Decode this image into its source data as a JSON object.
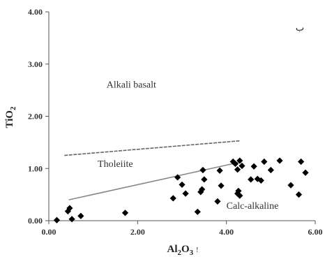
{
  "chart_data": {
    "type": "scatter",
    "title": "",
    "xlabel_main": "Al",
    "xlabel_sub1": "2",
    "xlabel_mid": "O",
    "xlabel_sub2": "3",
    "xlabel_suffix": "!",
    "ylabel_main": "TiO",
    "ylabel_sub": "2",
    "xlim": [
      0,
      6
    ],
    "ylim": [
      0,
      4
    ],
    "x_ticks": [
      0,
      2,
      4,
      6
    ],
    "x_tick_labels": [
      "0.00",
      "2.00",
      "4.00",
      "6.00"
    ],
    "y_ticks": [
      0,
      1,
      2,
      3,
      4
    ],
    "y_tick_labels": [
      "0.00",
      "1.00",
      "2.00",
      "3.00",
      "4.00"
    ],
    "grid": false,
    "corner_mark": "ب",
    "field_labels": [
      {
        "text": "Alkali basalt",
        "x": 1.3,
        "y": 2.55
      },
      {
        "text": "Tholeiite",
        "x": 1.1,
        "y": 1.03
      },
      {
        "text": "Calc-alkaline",
        "x": 4.0,
        "y": 0.23
      }
    ],
    "boundaries": [
      {
        "name": "upper",
        "style": "dashed",
        "x": [
          0.35,
          4.3
        ],
        "y": [
          1.25,
          1.53
        ]
      },
      {
        "name": "lower",
        "style": "solid",
        "x": [
          0.45,
          4.3
        ],
        "y": [
          0.4,
          1.12
        ]
      }
    ],
    "points": [
      {
        "x": 0.18,
        "y": 0.01
      },
      {
        "x": 0.43,
        "y": 0.18
      },
      {
        "x": 0.47,
        "y": 0.24
      },
      {
        "x": 0.52,
        "y": 0.03
      },
      {
        "x": 0.72,
        "y": 0.09
      },
      {
        "x": 1.72,
        "y": 0.15
      },
      {
        "x": 2.8,
        "y": 0.43
      },
      {
        "x": 2.9,
        "y": 0.83
      },
      {
        "x": 3.0,
        "y": 0.69
      },
      {
        "x": 3.08,
        "y": 0.52
      },
      {
        "x": 3.35,
        "y": 0.17
      },
      {
        "x": 3.42,
        "y": 0.55
      },
      {
        "x": 3.45,
        "y": 0.6
      },
      {
        "x": 3.47,
        "y": 0.97
      },
      {
        "x": 3.5,
        "y": 0.79
      },
      {
        "x": 3.8,
        "y": 0.37
      },
      {
        "x": 3.85,
        "y": 0.96
      },
      {
        "x": 3.88,
        "y": 0.67
      },
      {
        "x": 4.15,
        "y": 1.13
      },
      {
        "x": 4.2,
        "y": 1.09
      },
      {
        "x": 4.25,
        "y": 0.52
      },
      {
        "x": 4.27,
        "y": 0.57
      },
      {
        "x": 4.3,
        "y": 0.48
      },
      {
        "x": 4.25,
        "y": 0.98
      },
      {
        "x": 4.3,
        "y": 1.15
      },
      {
        "x": 4.35,
        "y": 1.05
      },
      {
        "x": 4.55,
        "y": 0.79
      },
      {
        "x": 4.62,
        "y": 1.04
      },
      {
        "x": 4.7,
        "y": 0.8
      },
      {
        "x": 4.78,
        "y": 0.77
      },
      {
        "x": 4.85,
        "y": 1.13
      },
      {
        "x": 5.0,
        "y": 0.97
      },
      {
        "x": 5.2,
        "y": 1.15
      },
      {
        "x": 5.45,
        "y": 0.68
      },
      {
        "x": 5.63,
        "y": 0.5
      },
      {
        "x": 5.68,
        "y": 1.13
      },
      {
        "x": 5.78,
        "y": 0.92
      }
    ]
  }
}
